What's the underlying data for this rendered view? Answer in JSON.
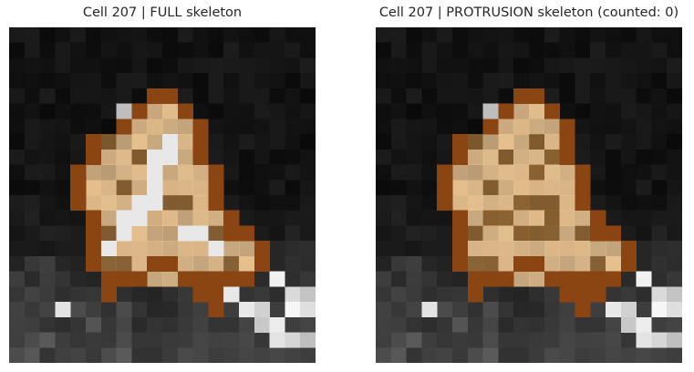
{
  "panels": [
    {
      "title": "Cell 207 | FULL skeleton",
      "skeleton_visible": true
    },
    {
      "title": "Cell 207 | PROTRUSION skeleton (counted: 0)",
      "skeleton_visible": false
    }
  ],
  "colors": {
    "membrane": "#8b4513",
    "cell_fill_light": "#e6c08f",
    "cell_fill_dark": "#9d6e35",
    "skeleton": "#e8e8e8",
    "background": "#0e0e0e"
  }
}
